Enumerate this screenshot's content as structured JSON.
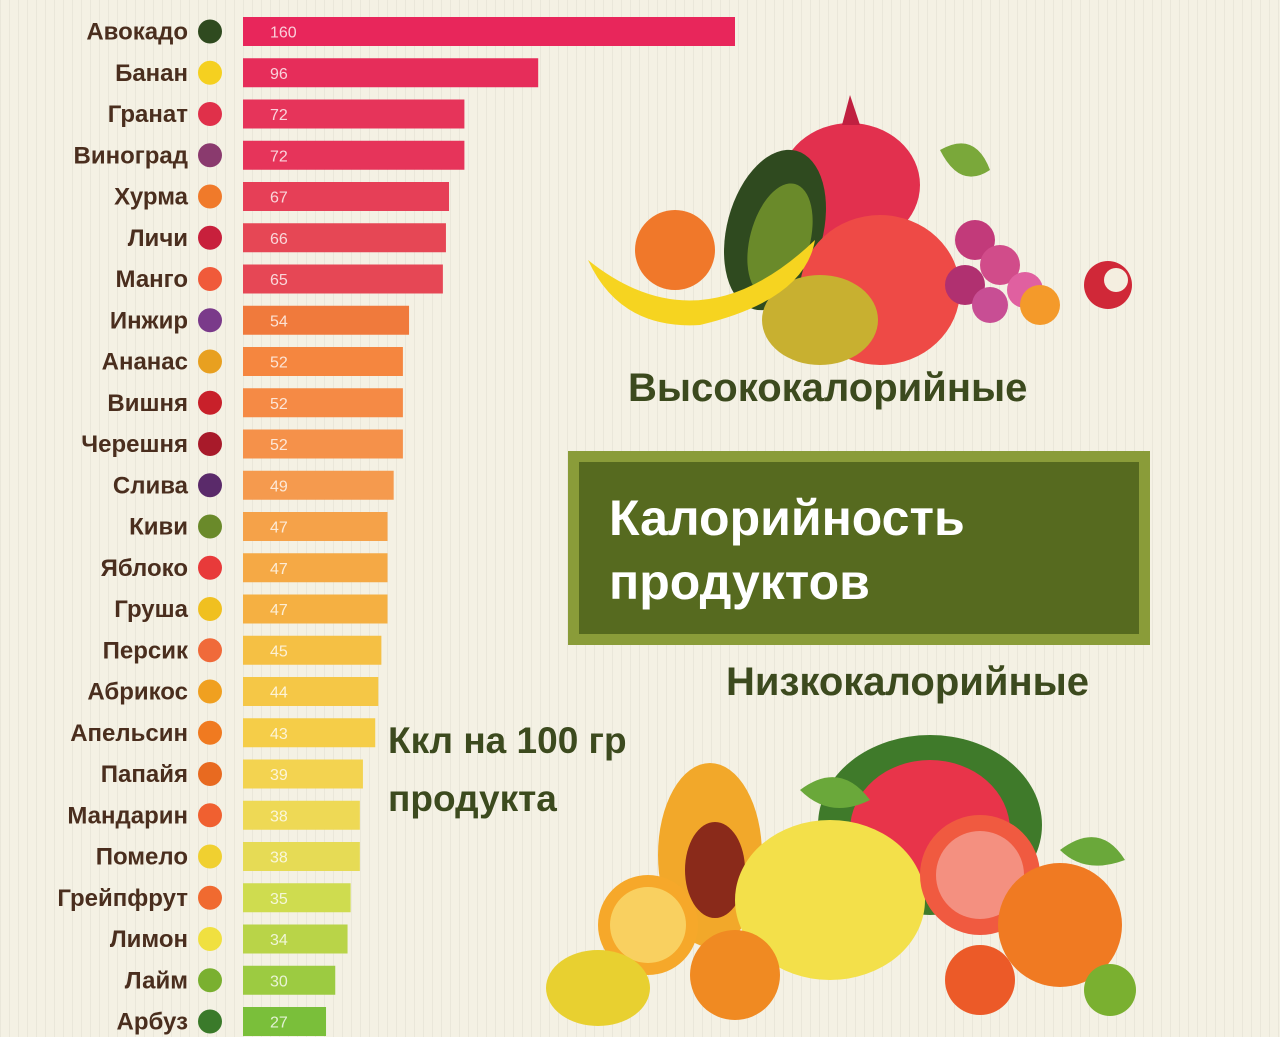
{
  "chart_data": {
    "type": "bar",
    "orientation": "horizontal",
    "categories": [
      "Авокадо",
      "Банан",
      "Гранат",
      "Виноград",
      "Хурма",
      "Личи",
      "Манго",
      "Инжир",
      "Ананас",
      "Вишня",
      "Черешня",
      "Слива",
      "Киви",
      "Яблоко",
      "Груша",
      "Персик",
      "Абрикос",
      "Апельсин",
      "Папайя",
      "Мандарин",
      "Помело",
      "Грейпфрут",
      "Лимон",
      "Лайм",
      "Арбуз"
    ],
    "values": [
      160,
      96,
      72,
      72,
      67,
      66,
      65,
      54,
      52,
      52,
      52,
      49,
      47,
      47,
      47,
      45,
      44,
      43,
      39,
      38,
      38,
      35,
      34,
      30,
      27
    ],
    "xlim": [
      0,
      160
    ],
    "grid": false,
    "legend": "none",
    "bar_colors": [
      "#e8265b",
      "#e62d5a",
      "#e6345a",
      "#e6345a",
      "#e63f57",
      "#e64755",
      "#e64755",
      "#f07a3c",
      "#f5863f",
      "#f58a45",
      "#f5914a",
      "#f59a4e",
      "#f5a249",
      "#f5a945",
      "#f5b042",
      "#f5c044",
      "#f5c746",
      "#f5cd48",
      "#f3d350",
      "#eed955",
      "#e6db55",
      "#cfdc4f",
      "#b9d448",
      "#9ccb41",
      "#7abf3a"
    ]
  },
  "headings": {
    "high": "Высококалорийные",
    "title": "Калорийность\nпродуктов",
    "low": "Низкокалорийные",
    "unit": "Ккл на 100 гр продукта"
  },
  "fruit_icons": [
    "avocado-icon",
    "banana-icon",
    "pomegranate-icon",
    "grape-icon",
    "persimmon-icon",
    "lychee-icon",
    "mango-icon",
    "fig-icon",
    "pineapple-icon",
    "cherry-icon",
    "sweet-cherry-icon",
    "plum-icon",
    "kiwi-icon",
    "apple-icon",
    "pear-icon",
    "peach-icon",
    "apricot-icon",
    "orange-icon",
    "papaya-icon",
    "tangerine-icon",
    "pomelo-icon",
    "grapefruit-icon",
    "lemon-icon",
    "lime-icon",
    "watermelon-icon"
  ],
  "icon_colors": [
    "#2f4a1f",
    "#f5d020",
    "#e0304a",
    "#8a3a6e",
    "#f07a2a",
    "#c8203c",
    "#f05a3a",
    "#7a3a8a",
    "#e8a020",
    "#c8202a",
    "#a81a2a",
    "#5a2a6a",
    "#6a8a2a",
    "#e83a3a",
    "#f0c020",
    "#f06a3a",
    "#f0a020",
    "#f07a20",
    "#e86a20",
    "#f06030",
    "#f0d030",
    "#f06a30",
    "#f0e040",
    "#7ab030",
    "#3a7a2a"
  ]
}
